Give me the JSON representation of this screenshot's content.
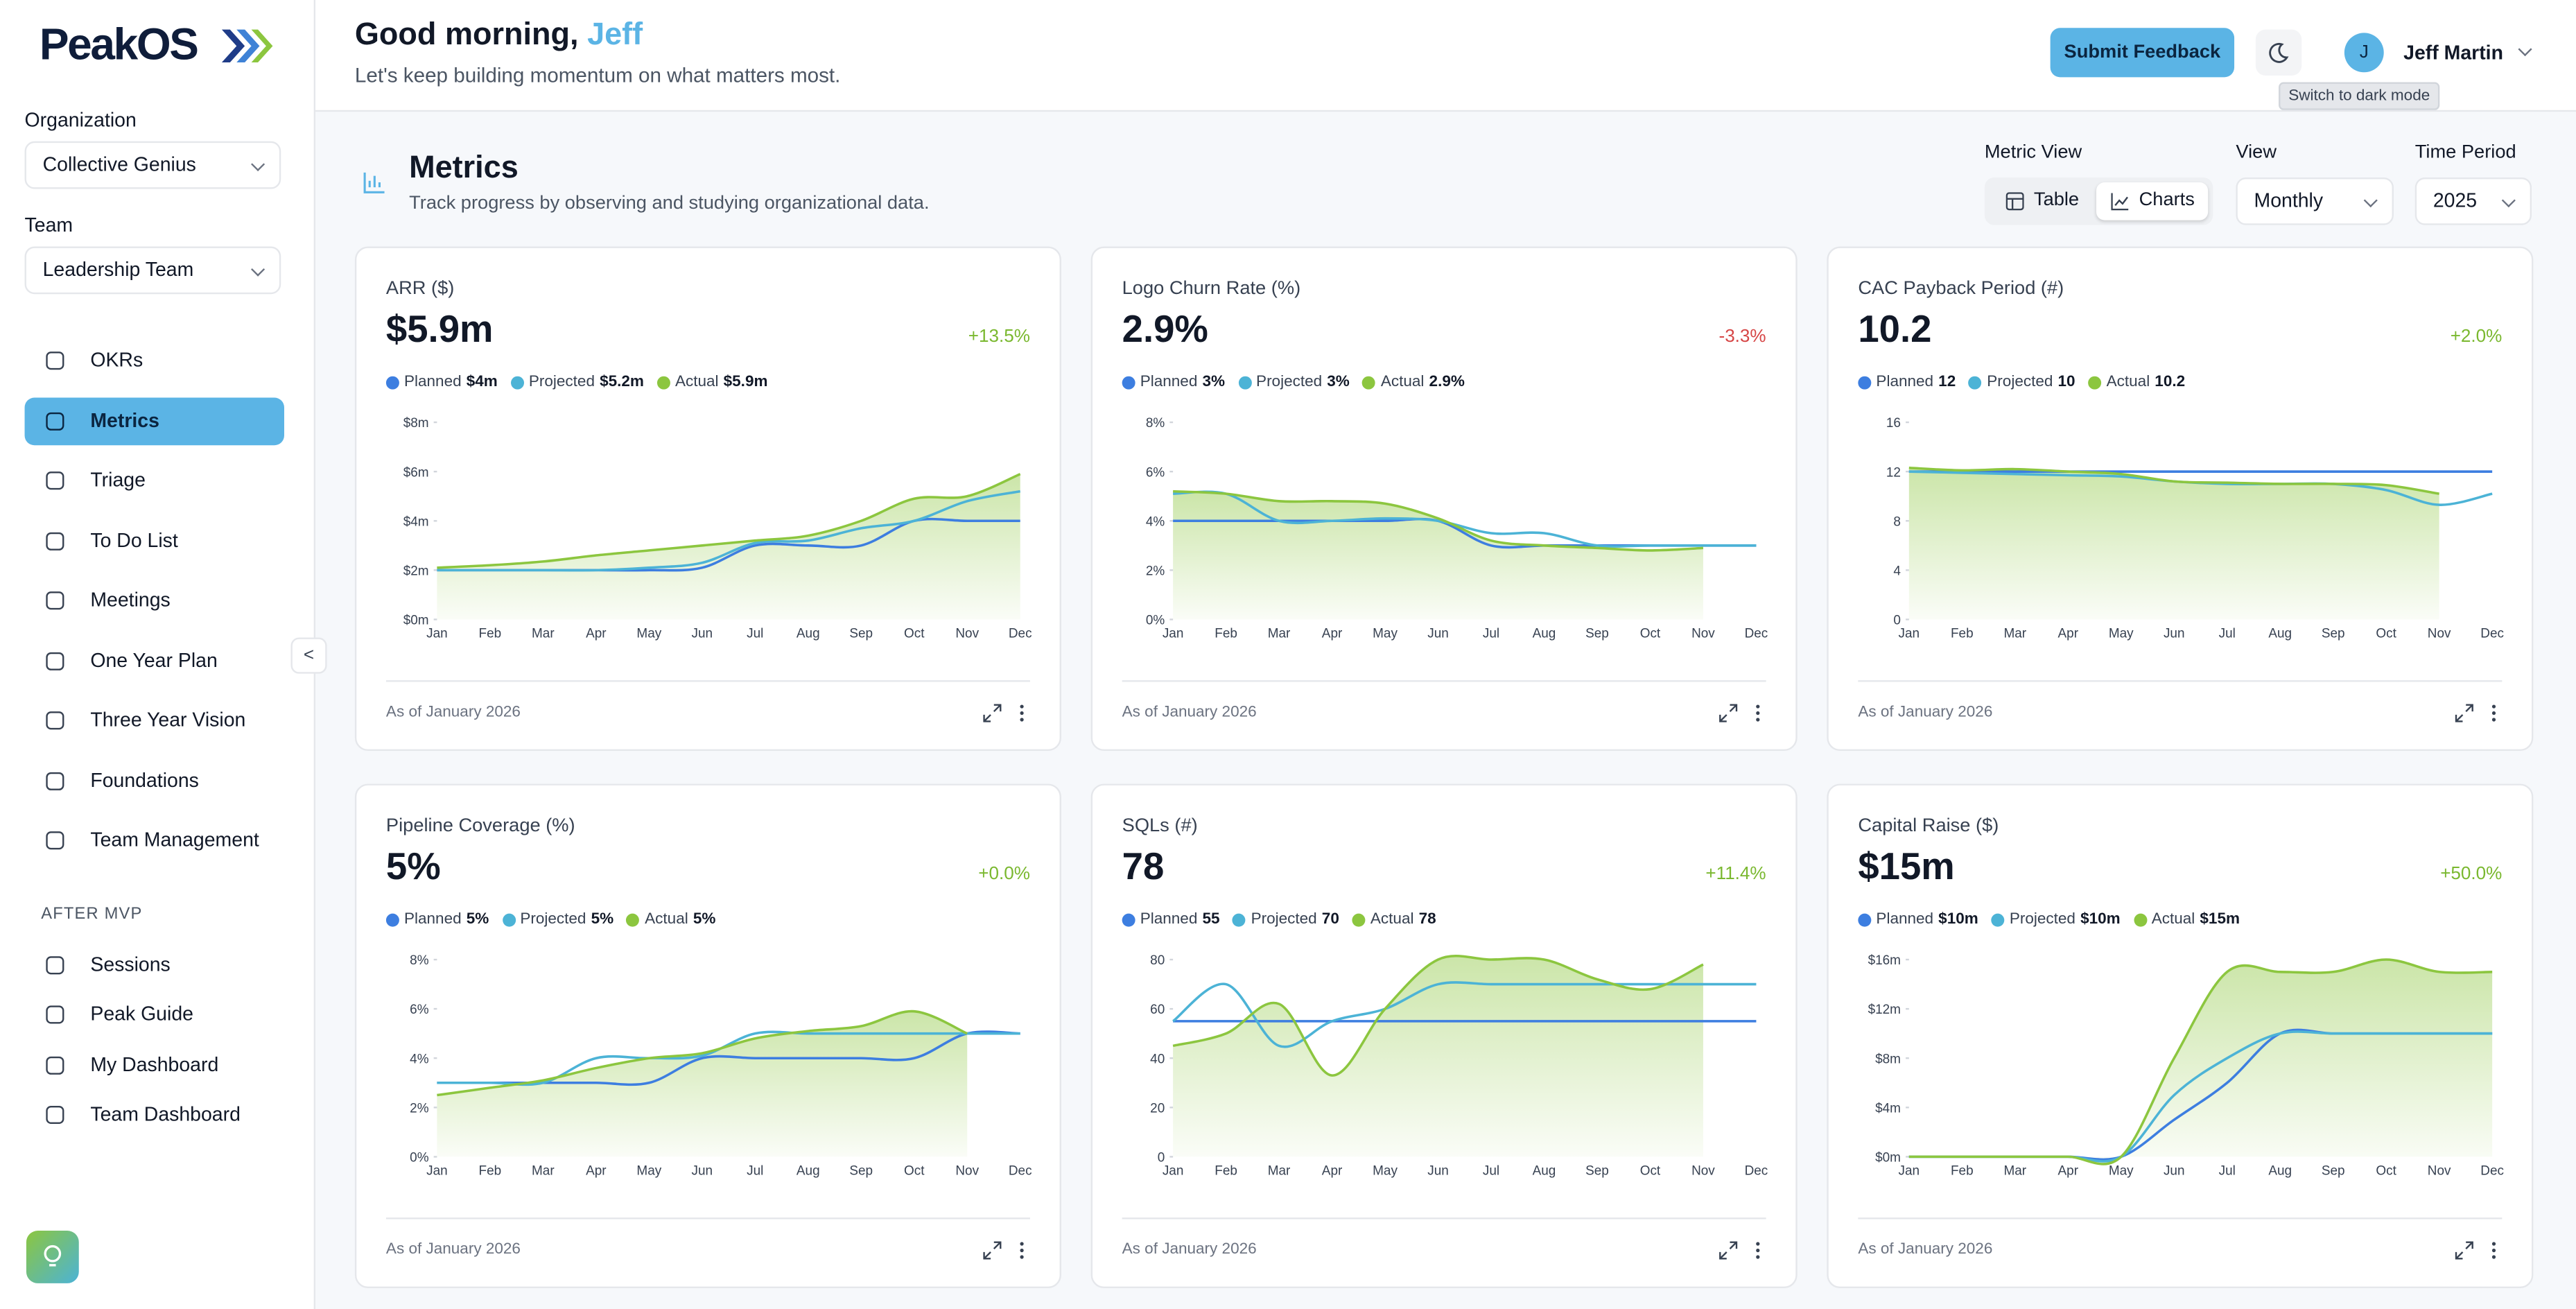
{
  "sidebar": {
    "logo": "PeakOS",
    "organization_label": "Organization",
    "organization": "Collective Genius",
    "team_label": "Team",
    "team": "Leadership Team",
    "nav": [
      "OKRs",
      "Metrics",
      "Triage",
      "To Do List",
      "Meetings",
      "One Year Plan",
      "Three Year Vision",
      "Foundations",
      "Team Management"
    ],
    "active_index": 1,
    "section_label": "AFTER MVP",
    "section_nav": [
      "Sessions",
      "Peak Guide",
      "My Dashboard",
      "Team Dashboard"
    ],
    "collapse": "<"
  },
  "header": {
    "greeting": "Good morning,",
    "name": "Jeff",
    "subtitle": "Let's keep building momentum on what matters most.",
    "feedback_button": "Submit Feedback",
    "tooltip": "Switch to dark mode",
    "user_initial": "J",
    "user_name": "Jeff Martin"
  },
  "metrics": {
    "title": "Metrics",
    "subtitle": "Track progress by observing and studying organizational data.",
    "metric_view_label": "Metric View",
    "metric_view_options": [
      "Table",
      "Charts"
    ],
    "metric_view_active": 1,
    "view_label": "View",
    "view": "Monthly",
    "period_label": "Time Period",
    "period": "2025"
  },
  "cards": [
    {
      "title": "ARR ($)",
      "value": "$5.9m",
      "change": "+13.5%",
      "footer": "As of January 2026",
      "chart": {
        "type": "line",
        "categories": [
          "Jan",
          "Feb",
          "Mar",
          "Apr",
          "May",
          "Jun",
          "Jul",
          "Aug",
          "Sep",
          "Oct",
          "Nov",
          "Dec"
        ],
        "ylim": [
          0,
          8
        ],
        "yticks": [
          {
            "value": 0,
            "label": "$0m"
          },
          {
            "value": 2,
            "label": "$2m"
          },
          {
            "value": 4,
            "label": "$4m"
          },
          {
            "value": 6,
            "label": "$6m"
          },
          {
            "value": 8,
            "label": "$8m"
          }
        ],
        "series": [
          {
            "name": "Planned",
            "legend_value": "$4m",
            "color": "#3d7ee0",
            "values": [
              2,
              2,
              2,
              2,
              2,
              2.1,
              3,
              3,
              3,
              4,
              4,
              4
            ]
          },
          {
            "name": "Projected",
            "legend_value": "$5.2m",
            "color": "#4cb3d6",
            "values": [
              2,
              2,
              2,
              2,
              2.1,
              2.3,
              3.1,
              3.2,
              3.7,
              4,
              4.8,
              5.2
            ]
          },
          {
            "name": "Actual",
            "legend_value": "$5.9m",
            "color": "#8cc63f",
            "area": true,
            "values": [
              2.1,
              2.2,
              2.35,
              2.6,
              2.8,
              3.0,
              3.2,
              3.4,
              4.0,
              4.9,
              5.0,
              5.9
            ]
          }
        ]
      }
    },
    {
      "title": "Logo Churn Rate (%)",
      "value": "2.9%",
      "change": "-3.3%",
      "footer": "As of January 2026",
      "chart": {
        "type": "line",
        "categories": [
          "Jan",
          "Feb",
          "Mar",
          "Apr",
          "May",
          "Jun",
          "Jul",
          "Aug",
          "Sep",
          "Oct",
          "Nov",
          "Dec"
        ],
        "ylim": [
          0,
          8
        ],
        "yticks": [
          {
            "value": 0,
            "label": "0%"
          },
          {
            "value": 2,
            "label": "2%"
          },
          {
            "value": 4,
            "label": "4%"
          },
          {
            "value": 6,
            "label": "6%"
          },
          {
            "value": 8,
            "label": "8%"
          }
        ],
        "series": [
          {
            "name": "Planned",
            "legend_value": "3%",
            "color": "#3d7ee0",
            "values": [
              4,
              4,
              4,
              4,
              4,
              4,
              3,
              3,
              3,
              3,
              3,
              3
            ]
          },
          {
            "name": "Projected",
            "legend_value": "3%",
            "color": "#4cb3d6",
            "values": [
              5.1,
              5.1,
              4,
              4,
              4.1,
              4,
              3.5,
              3.5,
              3,
              3,
              3,
              3
            ]
          },
          {
            "name": "Actual",
            "legend_value": "2.9%",
            "color": "#8cc63f",
            "area": true,
            "values": [
              5.2,
              5.1,
              4.8,
              4.8,
              4.7,
              4.1,
              3.2,
              3.0,
              2.9,
              2.8,
              2.9,
              null
            ]
          }
        ]
      }
    },
    {
      "title": "CAC Payback Period (#)",
      "value": "10.2",
      "change": "+2.0%",
      "footer": "As of January 2026",
      "chart": {
        "type": "line",
        "categories": [
          "Jan",
          "Feb",
          "Mar",
          "Apr",
          "May",
          "Jun",
          "Jul",
          "Aug",
          "Sep",
          "Oct",
          "Nov",
          "Dec"
        ],
        "ylim": [
          0,
          16
        ],
        "yticks": [
          0,
          4,
          8,
          12,
          16
        ],
        "series": [
          {
            "name": "Planned",
            "legend_value": "12",
            "color": "#3d7ee0",
            "values": [
              12,
              12,
              12,
              12,
              12,
              12,
              12,
              12,
              12,
              12,
              12,
              12
            ]
          },
          {
            "name": "Projected",
            "legend_value": "10",
            "color": "#4cb3d6",
            "values": [
              12,
              11.9,
              11.8,
              11.7,
              11.6,
              11.2,
              11,
              11,
              11,
              10.5,
              9.3,
              10.2
            ]
          },
          {
            "name": "Actual",
            "legend_value": "10.2",
            "color": "#8cc63f",
            "area": true,
            "values": [
              12.3,
              12.1,
              12.2,
              12,
              11.8,
              11.2,
              11.1,
              11.0,
              11.0,
              10.9,
              10.2,
              null
            ]
          }
        ]
      }
    },
    {
      "title": "Pipeline Coverage (%)",
      "value": "5%",
      "change": "+0.0%",
      "footer": "As of January 2026",
      "chart": {
        "type": "line",
        "categories": [
          "Jan",
          "Feb",
          "Mar",
          "Apr",
          "May",
          "Jun",
          "Jul",
          "Aug",
          "Sep",
          "Oct",
          "Nov",
          "Dec"
        ],
        "ylim": [
          0,
          8
        ],
        "yticks": [
          {
            "value": 0,
            "label": "0%"
          },
          {
            "value": 2,
            "label": "2%"
          },
          {
            "value": 4,
            "label": "4%"
          },
          {
            "value": 6,
            "label": "6%"
          },
          {
            "value": 8,
            "label": "8%"
          }
        ],
        "series": [
          {
            "name": "Planned",
            "legend_value": "5%",
            "color": "#3d7ee0",
            "values": [
              3,
              3,
              3,
              3,
              3,
              4,
              4,
              4,
              4,
              4,
              5,
              5
            ]
          },
          {
            "name": "Projected",
            "legend_value": "5%",
            "color": "#4cb3d6",
            "values": [
              3,
              3,
              3,
              4,
              4,
              4.1,
              5,
              5,
              5,
              5,
              5,
              5
            ]
          },
          {
            "name": "Actual",
            "legend_value": "5%",
            "color": "#8cc63f",
            "area": true,
            "values": [
              2.5,
              2.8,
              3.1,
              3.6,
              4.0,
              4.2,
              4.8,
              5.1,
              5.3,
              5.9,
              5,
              null
            ]
          }
        ]
      }
    },
    {
      "title": "SQLs (#)",
      "value": "78",
      "change": "+11.4%",
      "footer": "As of January 2026",
      "chart": {
        "type": "line",
        "categories": [
          "Jan",
          "Feb",
          "Mar",
          "Apr",
          "May",
          "Jun",
          "Jul",
          "Aug",
          "Sep",
          "Oct",
          "Nov",
          "Dec"
        ],
        "ylim": [
          0,
          80
        ],
        "yticks": [
          0,
          20,
          40,
          60,
          80
        ],
        "series": [
          {
            "name": "Planned",
            "legend_value": "55",
            "color": "#3d7ee0",
            "values": [
              55,
              55,
              55,
              55,
              55,
              55,
              55,
              55,
              55,
              55,
              55,
              55
            ]
          },
          {
            "name": "Projected",
            "legend_value": "70",
            "color": "#4cb3d6",
            "values": [
              55,
              70,
              45,
              55,
              60,
              70,
              70,
              70,
              70,
              70,
              70,
              70
            ]
          },
          {
            "name": "Actual",
            "legend_value": "78",
            "color": "#8cc63f",
            "area": true,
            "values": [
              45,
              50,
              62,
              33,
              60,
              80,
              80,
              80,
              72,
              68,
              78,
              null
            ]
          }
        ]
      }
    },
    {
      "title": "Capital Raise ($)",
      "value": "$15m",
      "change": "+50.0%",
      "footer": "As of January 2026",
      "chart": {
        "type": "line",
        "categories": [
          "Jan",
          "Feb",
          "Mar",
          "Apr",
          "May",
          "Jun",
          "Jul",
          "Aug",
          "Sep",
          "Oct",
          "Nov",
          "Dec"
        ],
        "ylim": [
          0,
          16
        ],
        "yticks": [
          {
            "value": 0,
            "label": "$0m"
          },
          {
            "value": 4,
            "label": "$4m"
          },
          {
            "value": 8,
            "label": "$8m"
          },
          {
            "value": 12,
            "label": "$12m"
          },
          {
            "value": 16,
            "label": "$16m"
          }
        ],
        "series": [
          {
            "name": "Planned",
            "legend_value": "$10m",
            "color": "#3d7ee0",
            "values": [
              0,
              0,
              0,
              0,
              0,
              3,
              6,
              10,
              10,
              10,
              10,
              10
            ]
          },
          {
            "name": "Projected",
            "legend_value": "$10m",
            "color": "#4cb3d6",
            "values": [
              0,
              0,
              0,
              0,
              0,
              5,
              8,
              10,
              10,
              10,
              10,
              10
            ]
          },
          {
            "name": "Actual",
            "legend_value": "$15m",
            "color": "#8cc63f",
            "area": true,
            "values": [
              0,
              0,
              0,
              0,
              0,
              8,
              15,
              15,
              15,
              16,
              15,
              15
            ]
          }
        ]
      }
    }
  ]
}
